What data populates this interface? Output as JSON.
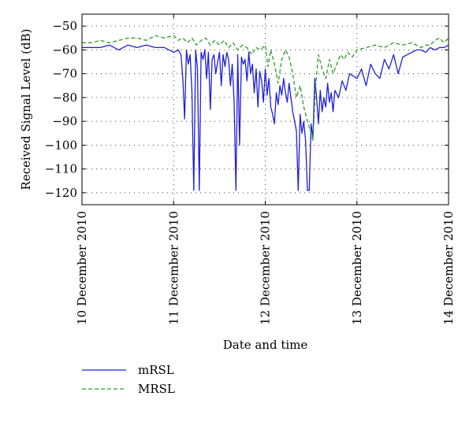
{
  "chart_data": {
    "type": "line",
    "xlabel": "Date and time",
    "ylabel": "Received Signal Level (dB)",
    "x_range": [
      "10 December 2010",
      "14 December 2010"
    ],
    "x_ticks": [
      "10 December 2010",
      "11 December 2010",
      "12 December 2010",
      "13 December 2010",
      "14 December 2010"
    ],
    "ylim": [
      -125,
      -45
    ],
    "y_ticks": [
      -50,
      -60,
      -70,
      -80,
      -90,
      -100,
      -110,
      -120
    ],
    "grid": true,
    "legend_position": "bottom-left",
    "series": [
      {
        "name": "mRSL",
        "color": "#1f1fd6",
        "style": "solid",
        "points": [
          [
            0.0,
            -59
          ],
          [
            0.1,
            -59
          ],
          [
            0.2,
            -59
          ],
          [
            0.3,
            -58
          ],
          [
            0.4,
            -60
          ],
          [
            0.5,
            -58
          ],
          [
            0.6,
            -59
          ],
          [
            0.7,
            -58
          ],
          [
            0.8,
            -59
          ],
          [
            0.9,
            -59
          ],
          [
            0.95,
            -60
          ],
          [
            1.0,
            -61
          ],
          [
            1.05,
            -60
          ],
          [
            1.08,
            -62
          ],
          [
            1.1,
            -72
          ],
          [
            1.12,
            -89
          ],
          [
            1.14,
            -60
          ],
          [
            1.16,
            -66
          ],
          [
            1.18,
            -62
          ],
          [
            1.2,
            -78
          ],
          [
            1.22,
            -119
          ],
          [
            1.24,
            -60
          ],
          [
            1.26,
            -68
          ],
          [
            1.28,
            -119
          ],
          [
            1.3,
            -61
          ],
          [
            1.32,
            -64
          ],
          [
            1.34,
            -60
          ],
          [
            1.36,
            -72
          ],
          [
            1.38,
            -61
          ],
          [
            1.4,
            -85
          ],
          [
            1.42,
            -64
          ],
          [
            1.44,
            -62
          ],
          [
            1.46,
            -70
          ],
          [
            1.48,
            -65
          ],
          [
            1.5,
            -61
          ],
          [
            1.52,
            -75
          ],
          [
            1.54,
            -62
          ],
          [
            1.56,
            -67
          ],
          [
            1.58,
            -61
          ],
          [
            1.6,
            -64
          ],
          [
            1.62,
            -75
          ],
          [
            1.64,
            -66
          ],
          [
            1.66,
            -82
          ],
          [
            1.68,
            -119
          ],
          [
            1.7,
            -62
          ],
          [
            1.72,
            -100
          ],
          [
            1.74,
            -63
          ],
          [
            1.76,
            -66
          ],
          [
            1.78,
            -64
          ],
          [
            1.8,
            -73
          ],
          [
            1.82,
            -61
          ],
          [
            1.84,
            -70
          ],
          [
            1.86,
            -66
          ],
          [
            1.88,
            -78
          ],
          [
            1.9,
            -68
          ],
          [
            1.92,
            -84
          ],
          [
            1.94,
            -69
          ],
          [
            1.96,
            -73
          ],
          [
            1.98,
            -82
          ],
          [
            2.0,
            -68
          ],
          [
            2.02,
            -79
          ],
          [
            2.04,
            -72
          ],
          [
            2.06,
            -84
          ],
          [
            2.08,
            -87
          ],
          [
            2.1,
            -91
          ],
          [
            2.12,
            -78
          ],
          [
            2.14,
            -83
          ],
          [
            2.16,
            -75
          ],
          [
            2.18,
            -79
          ],
          [
            2.2,
            -72
          ],
          [
            2.22,
            -78
          ],
          [
            2.24,
            -82
          ],
          [
            2.26,
            -74
          ],
          [
            2.28,
            -80
          ],
          [
            2.3,
            -86
          ],
          [
            2.32,
            -90
          ],
          [
            2.34,
            -94
          ],
          [
            2.36,
            -119
          ],
          [
            2.38,
            -87
          ],
          [
            2.4,
            -95
          ],
          [
            2.42,
            -90
          ],
          [
            2.44,
            -98
          ],
          [
            2.46,
            -119
          ],
          [
            2.48,
            -119
          ],
          [
            2.5,
            -91
          ],
          [
            2.52,
            -97
          ],
          [
            2.54,
            -72
          ],
          [
            2.56,
            -80
          ],
          [
            2.58,
            -91
          ],
          [
            2.6,
            -77
          ],
          [
            2.62,
            -86
          ],
          [
            2.64,
            -80
          ],
          [
            2.66,
            -84
          ],
          [
            2.68,
            -74
          ],
          [
            2.7,
            -82
          ],
          [
            2.72,
            -78
          ],
          [
            2.74,
            -86
          ],
          [
            2.76,
            -77
          ],
          [
            2.8,
            -80
          ],
          [
            2.84,
            -73
          ],
          [
            2.88,
            -77
          ],
          [
            2.92,
            -70
          ],
          [
            3.0,
            -72
          ],
          [
            3.05,
            -68
          ],
          [
            3.1,
            -75
          ],
          [
            3.15,
            -66
          ],
          [
            3.2,
            -70
          ],
          [
            3.25,
            -72
          ],
          [
            3.3,
            -64
          ],
          [
            3.35,
            -68
          ],
          [
            3.4,
            -62
          ],
          [
            3.45,
            -70
          ],
          [
            3.5,
            -63
          ],
          [
            3.55,
            -62
          ],
          [
            3.6,
            -61
          ],
          [
            3.65,
            -60
          ],
          [
            3.7,
            -60
          ],
          [
            3.75,
            -61
          ],
          [
            3.8,
            -59
          ],
          [
            3.85,
            -60
          ],
          [
            3.9,
            -59
          ],
          [
            3.95,
            -59
          ],
          [
            4.0,
            -58
          ]
        ]
      },
      {
        "name": "MRSL",
        "color": "#2e9b2e",
        "style": "dashed",
        "points": [
          [
            0.0,
            -57
          ],
          [
            0.1,
            -57
          ],
          [
            0.2,
            -56
          ],
          [
            0.3,
            -57
          ],
          [
            0.4,
            -56
          ],
          [
            0.5,
            -55
          ],
          [
            0.6,
            -55
          ],
          [
            0.7,
            -56
          ],
          [
            0.8,
            -54
          ],
          [
            0.9,
            -55
          ],
          [
            1.0,
            -54
          ],
          [
            1.05,
            -56
          ],
          [
            1.1,
            -55
          ],
          [
            1.15,
            -57
          ],
          [
            1.2,
            -55
          ],
          [
            1.25,
            -58
          ],
          [
            1.3,
            -56
          ],
          [
            1.35,
            -55
          ],
          [
            1.4,
            -58
          ],
          [
            1.45,
            -56
          ],
          [
            1.5,
            -58
          ],
          [
            1.55,
            -56
          ],
          [
            1.6,
            -59
          ],
          [
            1.65,
            -57
          ],
          [
            1.7,
            -60
          ],
          [
            1.75,
            -58
          ],
          [
            1.8,
            -59
          ],
          [
            1.85,
            -62
          ],
          [
            1.9,
            -59
          ],
          [
            1.95,
            -60
          ],
          [
            2.0,
            -58
          ],
          [
            2.03,
            -67
          ],
          [
            2.06,
            -60
          ],
          [
            2.1,
            -66
          ],
          [
            2.14,
            -74
          ],
          [
            2.18,
            -64
          ],
          [
            2.22,
            -60
          ],
          [
            2.26,
            -63
          ],
          [
            2.3,
            -70
          ],
          [
            2.34,
            -80
          ],
          [
            2.38,
            -75
          ],
          [
            2.42,
            -84
          ],
          [
            2.46,
            -90
          ],
          [
            2.5,
            -95
          ],
          [
            2.52,
            -98
          ],
          [
            2.55,
            -75
          ],
          [
            2.58,
            -62
          ],
          [
            2.62,
            -68
          ],
          [
            2.66,
            -72
          ],
          [
            2.7,
            -64
          ],
          [
            2.74,
            -70
          ],
          [
            2.78,
            -66
          ],
          [
            2.82,
            -62
          ],
          [
            2.86,
            -64
          ],
          [
            2.9,
            -61
          ],
          [
            2.95,
            -63
          ],
          [
            3.0,
            -60
          ],
          [
            3.1,
            -59
          ],
          [
            3.2,
            -58
          ],
          [
            3.3,
            -59
          ],
          [
            3.4,
            -57
          ],
          [
            3.5,
            -58
          ],
          [
            3.6,
            -57
          ],
          [
            3.7,
            -59
          ],
          [
            3.75,
            -58
          ],
          [
            3.8,
            -58
          ],
          [
            3.85,
            -56
          ],
          [
            3.9,
            -55
          ],
          [
            3.95,
            -57
          ],
          [
            4.0,
            -55
          ]
        ]
      }
    ]
  }
}
